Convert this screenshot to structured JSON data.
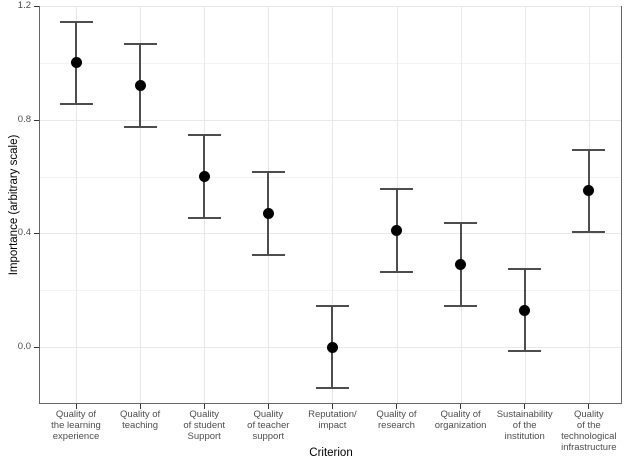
{
  "chart_data": {
    "type": "scatter",
    "subtype": "point-estimates-with-error-bars",
    "title": "",
    "xlabel": "Criterion",
    "ylabel": "Importance (arbitrary scale)",
    "ylim": [
      -0.2,
      1.2
    ],
    "grid": true,
    "legend": "none",
    "error_bar_halfwidth": 0.145,
    "yticks": [
      {
        "value": 0.0,
        "label": "0.0"
      },
      {
        "value": 0.4,
        "label": "0.4"
      },
      {
        "value": 0.8,
        "label": "0.8"
      },
      {
        "value": 1.2,
        "label": "1.2"
      }
    ],
    "yticks_minor": [
      0.2,
      0.6,
      1.0
    ],
    "categories": [
      "Quality of the learning experience",
      "Quality of teaching",
      "Quality of student Support",
      "Quality of teacher support",
      "Reputation/impact",
      "Quality of research",
      "Quality of organization",
      "Sustainability of the institution",
      "Quality of the technological infrastructure"
    ],
    "points": [
      {
        "category": "Quality of the learning experience",
        "label_lines": [
          "Quality of",
          "the learning",
          "experience"
        ],
        "value": 1.0,
        "lo": 0.855,
        "hi": 1.145
      },
      {
        "category": "Quality of teaching",
        "label_lines": [
          "Quality of",
          "teaching"
        ],
        "value": 0.92,
        "lo": 0.775,
        "hi": 1.065
      },
      {
        "category": "Quality of student Support",
        "label_lines": [
          "Quality",
          "of student",
          "Support"
        ],
        "value": 0.6,
        "lo": 0.455,
        "hi": 0.745
      },
      {
        "category": "Quality of teacher support",
        "label_lines": [
          "Quality",
          "of teacher",
          "support"
        ],
        "value": 0.47,
        "lo": 0.325,
        "hi": 0.615
      },
      {
        "category": "Reputation/impact",
        "label_lines": [
          "Reputation/",
          "impact"
        ],
        "value": 0.0,
        "lo": -0.145,
        "hi": 0.145
      },
      {
        "category": "Quality of research",
        "label_lines": [
          "Quality of",
          "research"
        ],
        "value": 0.41,
        "lo": 0.265,
        "hi": 0.555
      },
      {
        "category": "Quality of organization",
        "label_lines": [
          "Quality of",
          "organization"
        ],
        "value": 0.29,
        "lo": 0.145,
        "hi": 0.435
      },
      {
        "category": "Sustainability of the institution",
        "label_lines": [
          "Sustainability",
          "of the",
          "institution"
        ],
        "value": 0.13,
        "lo": -0.015,
        "hi": 0.275
      },
      {
        "category": "Quality of the technological infrastructure",
        "label_lines": [
          "Quality",
          "of the",
          "technological",
          "infrastructure"
        ],
        "value": 0.55,
        "lo": 0.405,
        "hi": 0.695
      }
    ]
  },
  "style": {
    "background": "#ffffff",
    "point_color": "#000000",
    "errorbar_color": "#4d4d4d",
    "grid_major": "#e8e8e8",
    "grid_minor": "#f3f3f3",
    "panel_border": "#666666",
    "tick_mark_color": "#333333",
    "tick_label_color": "#4d4d4d",
    "axis_title_color": "#000000"
  }
}
